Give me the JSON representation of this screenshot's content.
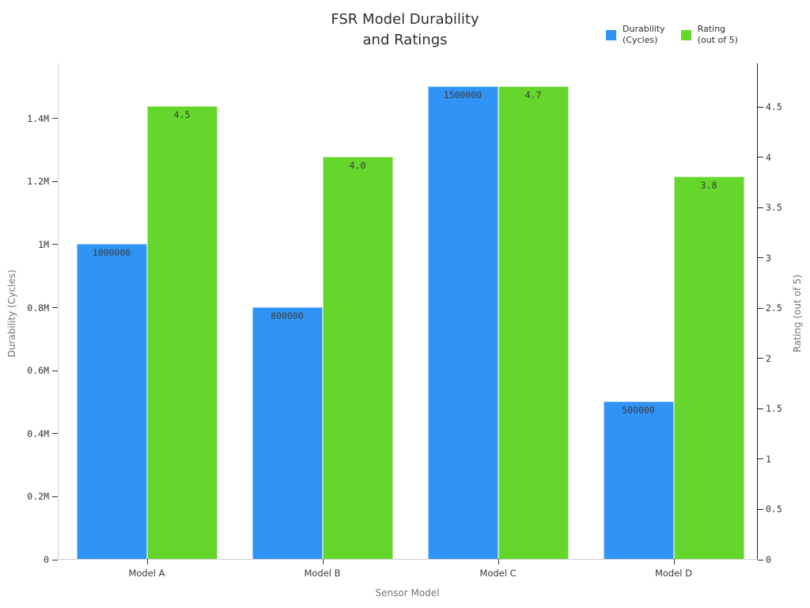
{
  "page": {
    "background": "#ffffff"
  },
  "title": {
    "line1": "FSR Model Durability",
    "line2": "and Ratings"
  },
  "legend": {
    "items": [
      {
        "line1": "Durability",
        "line2": "(Cycles)",
        "color": "#2f94f5",
        "name": "durability"
      },
      {
        "line1": "Rating",
        "line2": "(out of 5)",
        "color": "#65d62b",
        "name": "rating"
      }
    ]
  },
  "chart_data": {
    "type": "bar",
    "title": "FSR Model Durability and Ratings",
    "xlabel": "Sensor Model",
    "ylabel_left": "Durability (Cycles)",
    "ylabel_right": "Rating (out of 5)",
    "grid": false,
    "legend_position": "top-right",
    "categories": [
      "Model A",
      "Model B",
      "Model C",
      "Model D"
    ],
    "series": [
      {
        "name": "Durability (Cycles)",
        "axis": "left",
        "color": "#2f94f5",
        "values": [
          1000000,
          800000,
          1500000,
          500000
        ],
        "labels": [
          "1000000",
          "800000",
          "1500000",
          "500000"
        ]
      },
      {
        "name": "Rating (out of 5)",
        "axis": "right",
        "color": "#65d62b",
        "values": [
          4.5,
          4.0,
          4.7,
          3.8
        ],
        "labels": [
          "4.5",
          "4.0",
          "4.7",
          "3.8"
        ]
      }
    ],
    "left_axis": {
      "max": 1575000,
      "ticks": [
        0,
        200000,
        400000,
        600000,
        800000,
        1000000,
        1200000,
        1400000
      ],
      "tick_labels": [
        "0",
        "0.2M",
        "0.4M",
        "0.6M",
        "0.8M",
        "1M",
        "1.2M",
        "1.4M"
      ]
    },
    "right_axis": {
      "max": 4.936,
      "ticks": [
        0,
        0.5,
        1,
        1.5,
        2,
        2.5,
        3,
        3.5,
        4,
        4.5
      ],
      "tick_labels": [
        "0",
        "0.5",
        "1",
        "1.5",
        "2",
        "2.5",
        "3",
        "3.5",
        "4",
        "4.5"
      ]
    }
  }
}
